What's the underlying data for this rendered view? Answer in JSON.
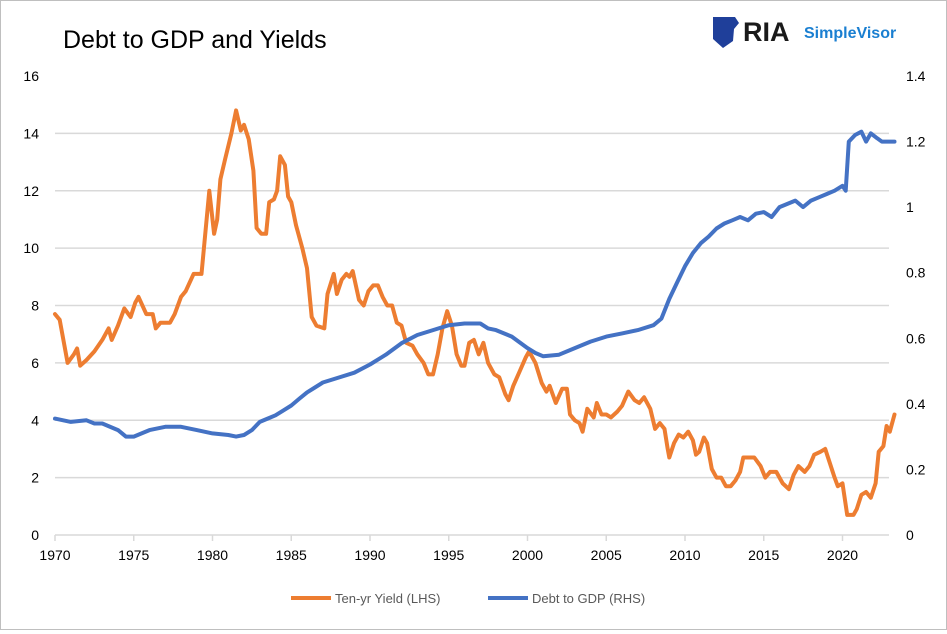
{
  "logo": {
    "brand": "RIA",
    "product": "SimpleVisor"
  },
  "colors": {
    "yield": "#ED7D31",
    "debt": "#4472C4",
    "grid": "#D9D9D9",
    "logo_dark": "#1a1a1a",
    "logo_blue": "#1a7fd1"
  },
  "chart_data": {
    "type": "line",
    "title": "Debt to GDP and Yields",
    "xlim": [
      1970,
      2023.3
    ],
    "x_ticks": [
      "1970",
      "1975",
      "1980",
      "1985",
      "1990",
      "1995",
      "2000",
      "2005",
      "2010",
      "2015",
      "2020"
    ],
    "y_left": {
      "lim": [
        0,
        16
      ],
      "ticks": [
        "0",
        "2",
        "4",
        "6",
        "8",
        "10",
        "12",
        "14",
        "16"
      ]
    },
    "y_right": {
      "lim": [
        0,
        1.4
      ],
      "ticks": [
        "0",
        "0.2",
        "0.4",
        "0.6",
        "0.8",
        "1",
        "1.2",
        "1.4"
      ]
    },
    "grid": true,
    "legend_placement": "bottom",
    "series": [
      {
        "name": "Ten-yr Yield (LHS)",
        "axis": "left",
        "x": [
          1970.0,
          1970.3,
          1970.8,
          1971.2,
          1971.4,
          1971.6,
          1972.0,
          1972.5,
          1973.0,
          1973.4,
          1973.6,
          1974.0,
          1974.4,
          1974.8,
          1975.1,
          1975.3,
          1975.8,
          1976.2,
          1976.4,
          1976.7,
          1977.3,
          1977.6,
          1978.0,
          1978.3,
          1978.8,
          1979.3,
          1979.8,
          1980.1,
          1980.3,
          1980.5,
          1980.8,
          1981.2,
          1981.5,
          1981.8,
          1982.0,
          1982.3,
          1982.6,
          1982.8,
          1983.1,
          1983.4,
          1983.6,
          1983.9,
          1984.1,
          1984.3,
          1984.6,
          1984.8,
          1985.0,
          1985.3,
          1985.7,
          1986.0,
          1986.3,
          1986.6,
          1987.1,
          1987.3,
          1987.7,
          1987.9,
          1988.2,
          1988.5,
          1988.7,
          1988.9,
          1989.3,
          1989.6,
          1989.9,
          1990.2,
          1990.5,
          1990.8,
          1991.1,
          1991.4,
          1991.7,
          1992.0,
          1992.3,
          1992.7,
          1993.0,
          1993.4,
          1993.7,
          1994.0,
          1994.3,
          1994.6,
          1994.9,
          1995.2,
          1995.5,
          1995.8,
          1996.0,
          1996.3,
          1996.6,
          1996.9,
          1997.2,
          1997.5,
          1997.9,
          1998.2,
          1998.6,
          1998.8,
          1999.1,
          1999.5,
          1999.9,
          2000.1,
          2000.5,
          2000.9,
          2001.2,
          2001.4,
          2001.8,
          2002.2,
          2002.5,
          2002.7,
          2003.0,
          2003.3,
          2003.5,
          2003.8,
          2004.2,
          2004.4,
          2004.7,
          2005.0,
          2005.3,
          2005.7,
          2006.0,
          2006.4,
          2006.8,
          2007.1,
          2007.4,
          2007.8,
          2008.1,
          2008.4,
          2008.7,
          2008.9,
          2009.0,
          2009.3,
          2009.6,
          2009.9,
          2010.2,
          2010.5,
          2010.7,
          2010.9,
          2011.2,
          2011.4,
          2011.7,
          2012.0,
          2012.3,
          2012.6,
          2012.9,
          2013.2,
          2013.5,
          2013.7,
          2014.0,
          2014.4,
          2014.8,
          2015.1,
          2015.4,
          2015.8,
          2016.2,
          2016.6,
          2016.9,
          2017.2,
          2017.6,
          2017.9,
          2018.2,
          2018.6,
          2018.9,
          2019.2,
          2019.5,
          2019.7,
          2020.0,
          2020.3,
          2020.7,
          2020.9,
          2021.2,
          2021.5,
          2021.8,
          2022.1,
          2022.3,
          2022.6,
          2022.8,
          2023.0,
          2023.3
        ],
        "y": [
          7.7,
          7.5,
          6.0,
          6.3,
          6.5,
          5.9,
          6.1,
          6.4,
          6.8,
          7.2,
          6.8,
          7.3,
          7.9,
          7.6,
          8.1,
          8.3,
          7.7,
          7.7,
          7.2,
          7.4,
          7.4,
          7.7,
          8.3,
          8.5,
          9.1,
          9.1,
          12.0,
          10.5,
          11.0,
          12.4,
          13.1,
          14.0,
          14.8,
          14.1,
          14.3,
          13.8,
          12.7,
          10.7,
          10.5,
          10.5,
          11.6,
          11.7,
          12.0,
          13.2,
          12.9,
          11.8,
          11.6,
          10.8,
          10.0,
          9.3,
          7.6,
          7.3,
          7.2,
          8.4,
          9.1,
          8.4,
          8.9,
          9.1,
          9.0,
          9.2,
          8.2,
          8.0,
          8.5,
          8.7,
          8.7,
          8.3,
          8.0,
          8.0,
          7.4,
          7.3,
          6.7,
          6.6,
          6.3,
          6.0,
          5.6,
          5.6,
          6.3,
          7.2,
          7.8,
          7.3,
          6.3,
          5.9,
          5.9,
          6.7,
          6.8,
          6.3,
          6.7,
          6.0,
          5.6,
          5.5,
          4.9,
          4.7,
          5.2,
          5.7,
          6.2,
          6.4,
          6.0,
          5.3,
          5.0,
          5.2,
          4.6,
          5.1,
          5.1,
          4.2,
          4.0,
          3.9,
          3.6,
          4.4,
          4.1,
          4.6,
          4.2,
          4.2,
          4.1,
          4.3,
          4.5,
          5.0,
          4.7,
          4.6,
          4.8,
          4.4,
          3.7,
          3.9,
          3.7,
          3.0,
          2.7,
          3.2,
          3.5,
          3.4,
          3.6,
          3.3,
          2.8,
          2.9,
          3.4,
          3.2,
          2.3,
          2.0,
          2.0,
          1.7,
          1.7,
          1.9,
          2.2,
          2.7,
          2.7,
          2.7,
          2.4,
          2.0,
          2.2,
          2.2,
          1.8,
          1.6,
          2.1,
          2.4,
          2.2,
          2.4,
          2.8,
          2.9,
          3.0,
          2.5,
          2.0,
          1.7,
          1.8,
          0.7,
          0.7,
          0.9,
          1.4,
          1.5,
          1.3,
          1.8,
          2.9,
          3.1,
          3.8,
          3.6,
          4.2
        ]
      },
      {
        "name": "Debt to GDP (RHS)",
        "axis": "right",
        "x": [
          1970,
          1971,
          1972,
          1972.5,
          1973,
          1974,
          1974.5,
          1975,
          1975.5,
          1976,
          1977,
          1978,
          1979,
          1980,
          1981,
          1981.5,
          1982,
          1982.5,
          1983,
          1983.5,
          1984,
          1984.5,
          1985,
          1985.5,
          1986,
          1986.5,
          1987,
          1988,
          1989,
          1990,
          1991,
          1992,
          1993,
          1994,
          1995,
          1996,
          1997,
          1997.5,
          1998,
          1999,
          2000,
          2000.5,
          2001,
          2002,
          2003,
          2004,
          2005,
          2006,
          2007,
          2008,
          2008.5,
          2009,
          2009.5,
          2010,
          2010.5,
          2011,
          2011.5,
          2012,
          2012.5,
          2013,
          2013.5,
          2014,
          2014.5,
          2015,
          2015.5,
          2016,
          2016.5,
          2017,
          2017.5,
          2018,
          2018.5,
          2019,
          2019.5,
          2020.0,
          2020.2,
          2020.4,
          2020.8,
          2021.2,
          2021.5,
          2021.8,
          2022.2,
          2022.5,
          2023.3
        ],
        "y": [
          0.355,
          0.345,
          0.35,
          0.34,
          0.34,
          0.32,
          0.3,
          0.3,
          0.31,
          0.32,
          0.33,
          0.33,
          0.32,
          0.31,
          0.305,
          0.3,
          0.305,
          0.32,
          0.345,
          0.355,
          0.365,
          0.38,
          0.395,
          0.415,
          0.435,
          0.45,
          0.465,
          0.48,
          0.495,
          0.52,
          0.55,
          0.585,
          0.61,
          0.625,
          0.64,
          0.645,
          0.645,
          0.63,
          0.625,
          0.605,
          0.57,
          0.555,
          0.545,
          0.55,
          0.57,
          0.59,
          0.605,
          0.615,
          0.625,
          0.64,
          0.66,
          0.72,
          0.77,
          0.82,
          0.86,
          0.89,
          0.91,
          0.935,
          0.95,
          0.96,
          0.97,
          0.96,
          0.98,
          0.985,
          0.97,
          1.0,
          1.01,
          1.02,
          1.0,
          1.02,
          1.03,
          1.04,
          1.05,
          1.065,
          1.05,
          1.2,
          1.22,
          1.23,
          1.2,
          1.225,
          1.21,
          1.2,
          1.2
        ]
      }
    ]
  }
}
